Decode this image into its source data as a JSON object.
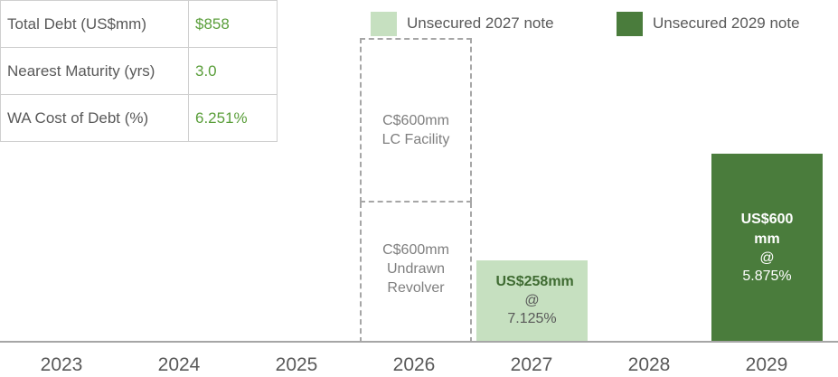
{
  "table": {
    "rows": [
      [
        "Total Debt (US$mm)",
        "$858"
      ],
      [
        "Nearest Maturity (yrs)",
        "3.0"
      ],
      [
        "WA Cost of Debt (%)",
        "6.251%"
      ]
    ]
  },
  "chart_data": {
    "type": "bar",
    "categories": [
      "2023",
      "2024",
      "2025",
      "2026",
      "2027",
      "2028",
      "2029"
    ],
    "series": [
      {
        "name": "Unsecured 2027 note",
        "color": "#c6e0c0",
        "values": [
          null,
          null,
          null,
          null,
          258,
          null,
          null
        ],
        "value_labels": [
          null,
          null,
          null,
          null,
          "US$258mm",
          null,
          null
        ],
        "rate_labels": [
          null,
          null,
          null,
          null,
          [
            "@",
            "7.125%"
          ],
          null,
          null
        ]
      },
      {
        "name": "Unsecured 2029 note",
        "color": "#4a7c3c",
        "values": [
          null,
          null,
          null,
          null,
          null,
          null,
          600
        ],
        "value_labels": [
          null,
          null,
          null,
          null,
          null,
          null,
          "US$600 mm"
        ],
        "rate_labels": [
          null,
          null,
          null,
          null,
          null,
          null,
          [
            "@",
            "5.875%"
          ]
        ]
      }
    ],
    "annotations": [
      {
        "lines": [
          "C$600mm",
          "LC Facility"
        ]
      },
      {
        "lines": [
          "C$600mm",
          "Undrawn",
          "Revolver"
        ]
      }
    ]
  }
}
